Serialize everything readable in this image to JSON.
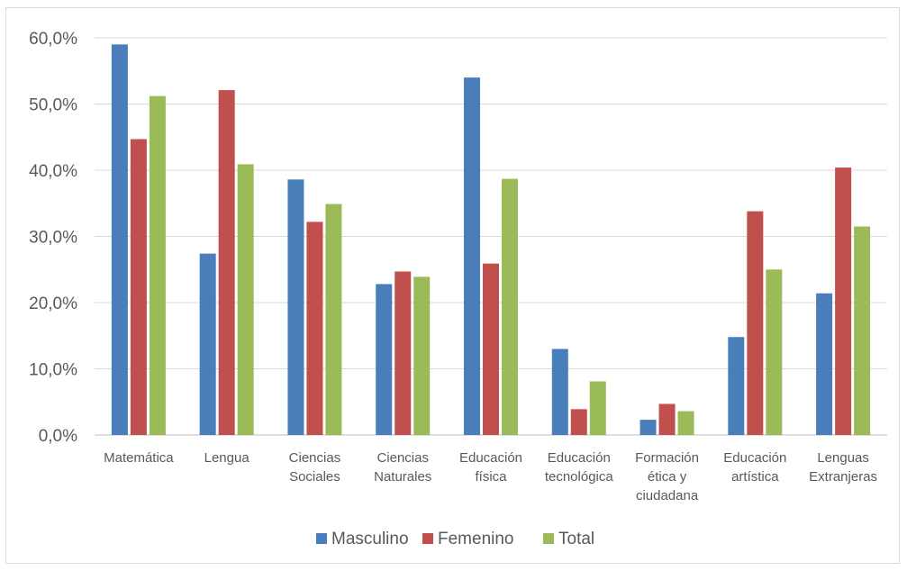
{
  "chart_data": {
    "type": "bar",
    "categories": [
      [
        "Matemática"
      ],
      [
        "Lengua"
      ],
      [
        "Ciencias",
        "Sociales"
      ],
      [
        "Ciencias",
        "Naturales"
      ],
      [
        "Educación",
        "física"
      ],
      [
        "Educación",
        "tecnológica"
      ],
      [
        "Formación",
        "ética y",
        "ciudadana"
      ],
      [
        "Educación",
        "artística"
      ],
      [
        "Lenguas",
        "Extranjeras"
      ]
    ],
    "series": [
      {
        "name": "Masculino",
        "color": "#4a7ebb",
        "values": [
          59.0,
          27.4,
          38.6,
          22.8,
          54.0,
          13.0,
          2.3,
          14.8,
          21.4
        ]
      },
      {
        "name": "Femenino",
        "color": "#c0504d",
        "values": [
          44.7,
          52.1,
          32.2,
          24.7,
          25.9,
          3.9,
          4.7,
          33.8,
          40.4
        ]
      },
      {
        "name": "Total",
        "color": "#9bbb59",
        "values": [
          51.2,
          40.9,
          34.9,
          23.9,
          38.7,
          8.1,
          3.6,
          25.0,
          31.5
        ]
      }
    ],
    "yticks": [
      "0,0%",
      "10,0%",
      "20,0%",
      "30,0%",
      "40,0%",
      "50,0%",
      "60,0%"
    ],
    "ylim": [
      0,
      60
    ],
    "ystep": 10,
    "grid": true,
    "legend_position": "bottom",
    "title": "",
    "xlabel": "",
    "ylabel": ""
  }
}
